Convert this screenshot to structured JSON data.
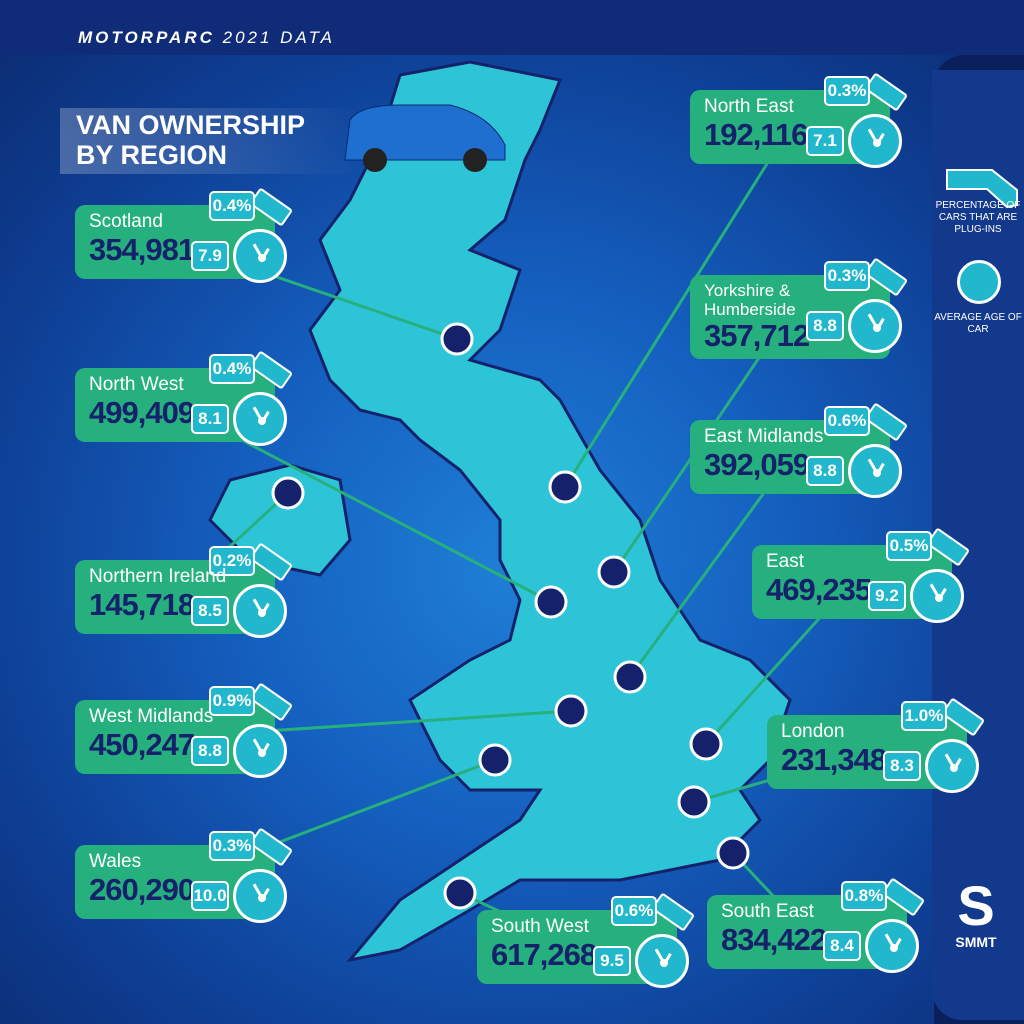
{
  "header": {
    "brand": "MOTORPARC",
    "subtitle": "2021 DATA"
  },
  "title": {
    "line1": "VAN OWNERSHIP",
    "line2": "BY REGION"
  },
  "legend": {
    "plugin_label": "PERCENTAGE OF CARS THAT ARE PLUG-INS",
    "age_label": "AVERAGE AGE OF CAR",
    "plugin_icon": "ev-plug-icon",
    "age_icon": "clock-icon"
  },
  "logo": {
    "text": "SMMT"
  },
  "colors": {
    "card": "#26b07e",
    "map": "#2ec4d8",
    "dot": "#15226b",
    "value": "#15226b",
    "badge": "#21b7cc"
  },
  "regions": [
    {
      "name": "Scotland",
      "vans": "354,981",
      "plugin_pct": "0.4%",
      "avg_age": "7.9"
    },
    {
      "name": "North West",
      "vans": "499,409",
      "plugin_pct": "0.4%",
      "avg_age": "8.1"
    },
    {
      "name": "Northern Ireland",
      "vans": "145,718",
      "plugin_pct": "0.2%",
      "avg_age": "8.5"
    },
    {
      "name": "West Midlands",
      "vans": "450,247",
      "plugin_pct": "0.9%",
      "avg_age": "8.8"
    },
    {
      "name": "Wales",
      "vans": "260,290",
      "plugin_pct": "0.3%",
      "avg_age": "10.0"
    },
    {
      "name": "South West",
      "vans": "617,268",
      "plugin_pct": "0.6%",
      "avg_age": "9.5"
    },
    {
      "name": "South East",
      "vans": "834,422",
      "plugin_pct": "0.8%",
      "avg_age": "8.4"
    },
    {
      "name": "London",
      "vans": "231,348",
      "plugin_pct": "1.0%",
      "avg_age": "8.3"
    },
    {
      "name": "East",
      "vans": "469,235",
      "plugin_pct": "0.5%",
      "avg_age": "9.2"
    },
    {
      "name": "East Midlands",
      "vans": "392,059",
      "plugin_pct": "0.6%",
      "avg_age": "8.8"
    },
    {
      "name": "Yorkshire & Humberside",
      "vans": "357,712",
      "plugin_pct": "0.3%",
      "avg_age": "8.8"
    },
    {
      "name": "North East",
      "vans": "192,116",
      "plugin_pct": "0.3%",
      "avg_age": "7.1"
    }
  ]
}
